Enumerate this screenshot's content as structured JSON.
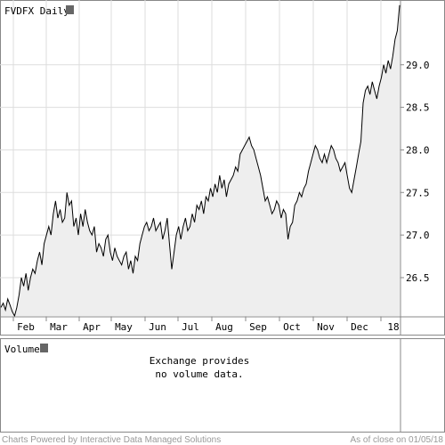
{
  "chart_data": {
    "type": "area",
    "title": "FVDFX Daily",
    "x_labels": [
      "Feb",
      "Mar",
      "Apr",
      "May",
      "Jun",
      "Jul",
      "Aug",
      "Sep",
      "Oct",
      "Nov",
      "Dec",
      "18"
    ],
    "y_ticks": [
      "26.5",
      "27.0",
      "27.5",
      "28.0",
      "28.5",
      "29.0"
    ],
    "ylim": [
      26.05,
      29.75
    ],
    "grid": true,
    "series": [
      {
        "values": [
          26.15,
          26.2,
          26.12,
          26.25,
          26.18,
          26.1,
          26.05,
          26.15,
          26.3,
          26.5,
          26.4,
          26.55,
          26.35,
          26.5,
          26.6,
          26.55,
          26.7,
          26.8,
          26.65,
          26.9,
          27.0,
          27.1,
          27.0,
          27.25,
          27.4,
          27.2,
          27.3,
          27.15,
          27.2,
          27.5,
          27.35,
          27.4,
          27.1,
          27.2,
          27.0,
          27.25,
          27.1,
          27.3,
          27.15,
          27.05,
          27.0,
          27.1,
          26.8,
          26.9,
          26.85,
          26.75,
          26.95,
          27.0,
          26.8,
          26.7,
          26.85,
          26.75,
          26.7,
          26.65,
          26.75,
          26.8,
          26.6,
          26.7,
          26.55,
          26.75,
          26.7,
          26.9,
          27.0,
          27.1,
          27.15,
          27.05,
          27.1,
          27.2,
          27.05,
          27.1,
          27.15,
          26.95,
          27.05,
          27.2,
          26.9,
          26.6,
          26.8,
          27.0,
          27.1,
          26.95,
          27.1,
          27.2,
          27.05,
          27.1,
          27.25,
          27.15,
          27.35,
          27.3,
          27.4,
          27.25,
          27.45,
          27.4,
          27.55,
          27.45,
          27.6,
          27.5,
          27.7,
          27.55,
          27.65,
          27.45,
          27.6,
          27.65,
          27.7,
          27.8,
          27.75,
          27.95,
          28.0,
          28.05,
          28.1,
          28.15,
          28.05,
          28.0,
          27.9,
          27.8,
          27.7,
          27.55,
          27.4,
          27.45,
          27.35,
          27.25,
          27.3,
          27.4,
          27.35,
          27.2,
          27.3,
          27.25,
          26.95,
          27.1,
          27.15,
          27.35,
          27.4,
          27.5,
          27.45,
          27.55,
          27.6,
          27.75,
          27.85,
          27.95,
          28.05,
          28.0,
          27.9,
          27.85,
          27.95,
          27.85,
          27.95,
          28.05,
          28.0,
          27.9,
          27.85,
          27.75,
          27.8,
          27.85,
          27.7,
          27.55,
          27.5,
          27.65,
          27.8,
          27.95,
          28.1,
          28.55,
          28.7,
          28.75,
          28.65,
          28.8,
          28.7,
          28.6,
          28.75,
          28.85,
          29.0,
          28.9,
          29.05,
          28.95,
          29.1,
          29.3,
          29.4,
          29.7
        ]
      }
    ]
  },
  "volume_panel": {
    "label": "Volume",
    "message_line1": "Exchange provides",
    "message_line2": "no volume data."
  },
  "footer": {
    "credit": "Charts Powered by Interactive Data Managed Solutions",
    "as_of": "As of close on 01/05/18"
  },
  "colors": {
    "line": "#000000",
    "fill": "#eeeeee",
    "grid": "#dddddd",
    "frame": "#888888",
    "marker": "#666666",
    "footer_text": "#999999"
  }
}
